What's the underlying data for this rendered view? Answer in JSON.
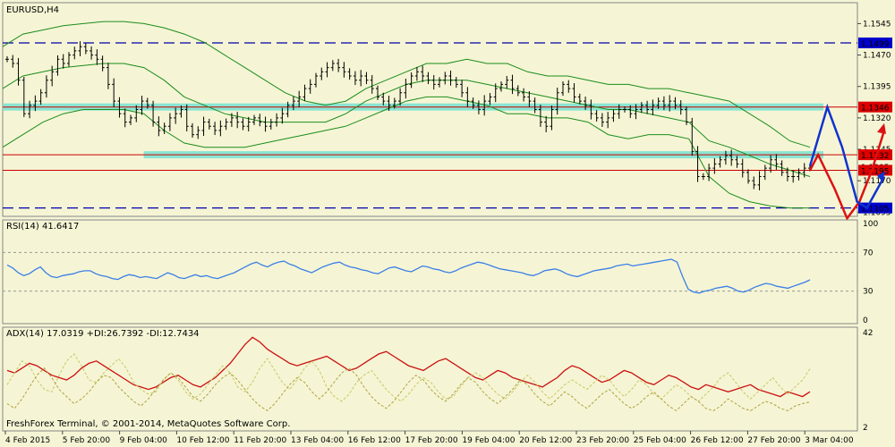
{
  "chart_data": [
    {
      "type": "ohlc",
      "title": "EURUSD,H4",
      "ylim": [
        1.1085,
        1.1595
      ],
      "y_ticks": [
        "1.1545",
        "1.1470",
        "1.1395",
        "1.1320",
        "1.1245",
        "1.1170",
        "1.1095"
      ],
      "levels": [
        {
          "value": 1.1499,
          "label": "1.1499",
          "style": "dashed",
          "color": "#0000aa"
        },
        {
          "value": 1.1346,
          "label": "1.1346",
          "style": "solid-band",
          "color": "#cc0000"
        },
        {
          "value": 1.1232,
          "label": "1.1232",
          "style": "solid",
          "color": "#cc0000"
        },
        {
          "value": 1.1205,
          "label": "1.1205",
          "style": "hidden",
          "color": "#333333"
        },
        {
          "value": 1.1195,
          "label": "1.1195",
          "style": "solid",
          "color": "#cc0000"
        },
        {
          "value": 1.1105,
          "label": "1.1105",
          "style": "dashed",
          "color": "#0000aa"
        }
      ],
      "close": [
        1.146,
        1.145,
        1.141,
        1.133,
        1.135,
        1.136,
        1.138,
        1.141,
        1.143,
        1.146,
        1.145,
        1.147,
        1.148,
        1.149,
        1.148,
        1.147,
        1.146,
        1.144,
        1.14,
        1.136,
        1.133,
        1.131,
        1.132,
        1.134,
        1.136,
        1.135,
        1.131,
        1.129,
        1.13,
        1.132,
        1.133,
        1.134,
        1.13,
        1.128,
        1.129,
        1.131,
        1.13,
        1.129,
        1.13,
        1.131,
        1.132,
        1.131,
        1.13,
        1.131,
        1.132,
        1.131,
        1.13,
        1.131,
        1.132,
        1.133,
        1.135,
        1.136,
        1.137,
        1.139,
        1.14,
        1.142,
        1.143,
        1.144,
        1.145,
        1.144,
        1.143,
        1.142,
        1.141,
        1.142,
        1.141,
        1.139,
        1.137,
        1.136,
        1.135,
        1.136,
        1.138,
        1.14,
        1.142,
        1.143,
        1.142,
        1.141,
        1.14,
        1.141,
        1.142,
        1.141,
        1.14,
        1.138,
        1.136,
        1.135,
        1.134,
        1.136,
        1.137,
        1.139,
        1.14,
        1.141,
        1.139,
        1.138,
        1.137,
        1.136,
        1.134,
        1.131,
        1.13,
        1.134,
        1.138,
        1.14,
        1.139,
        1.137,
        1.136,
        1.135,
        1.133,
        1.132,
        1.131,
        1.132,
        1.133,
        1.134,
        1.134,
        1.133,
        1.134,
        1.135,
        1.134,
        1.135,
        1.136,
        1.135,
        1.136,
        1.135,
        1.134,
        1.131,
        1.124,
        1.118,
        1.118,
        1.12,
        1.121,
        1.122,
        1.123,
        1.122,
        1.121,
        1.119,
        1.117,
        1.116,
        1.118,
        1.12,
        1.122,
        1.121,
        1.119,
        1.118,
        1.118,
        1.119,
        1.12,
        1.1205
      ],
      "bands": {
        "upper": [
          1.149,
          1.152,
          1.153,
          1.154,
          1.1545,
          1.155,
          1.155,
          1.1545,
          1.1535,
          1.152,
          1.15,
          1.147,
          1.144,
          1.141,
          1.138,
          1.136,
          1.135,
          1.136,
          1.139,
          1.141,
          1.143,
          1.145,
          1.145,
          1.146,
          1.145,
          1.145,
          1.143,
          1.142,
          1.142,
          1.141,
          1.14,
          1.14,
          1.139,
          1.139,
          1.138,
          1.137,
          1.136,
          1.133,
          1.13,
          1.1265,
          1.125
        ],
        "middle": [
          1.139,
          1.142,
          1.143,
          1.144,
          1.1445,
          1.145,
          1.145,
          1.144,
          1.141,
          1.137,
          1.135,
          1.133,
          1.132,
          1.131,
          1.131,
          1.131,
          1.131,
          1.133,
          1.136,
          1.138,
          1.14,
          1.141,
          1.141,
          1.141,
          1.14,
          1.139,
          1.138,
          1.137,
          1.136,
          1.135,
          1.134,
          1.134,
          1.133,
          1.132,
          1.131,
          1.1265,
          1.125,
          1.123,
          1.121,
          1.1195,
          1.118
        ],
        "lower": [
          1.125,
          1.128,
          1.131,
          1.133,
          1.134,
          1.134,
          1.134,
          1.133,
          1.129,
          1.126,
          1.125,
          1.125,
          1.125,
          1.126,
          1.127,
          1.128,
          1.129,
          1.13,
          1.132,
          1.134,
          1.136,
          1.137,
          1.137,
          1.136,
          1.135,
          1.133,
          1.133,
          1.132,
          1.132,
          1.131,
          1.128,
          1.127,
          1.128,
          1.128,
          1.127,
          1.118,
          1.114,
          1.112,
          1.111,
          1.1105,
          1.1105
        ]
      },
      "zones": [
        {
          "from": 0,
          "to": 1,
          "y": 1.1346
        },
        {
          "from": 0.165,
          "to": 1,
          "y": 1.1232
        }
      ],
      "projection": {
        "red": [
          [
            1.1195,
            0
          ],
          [
            1.1232,
            0.33
          ],
          [
            1.115,
            1
          ],
          [
            1.108,
            1.5
          ],
          [
            1.112,
            2
          ],
          [
            1.1195,
            2.5
          ],
          [
            1.129,
            3
          ]
        ],
        "blue": [
          [
            1.1205,
            0
          ],
          [
            1.1346,
            0.7
          ],
          [
            1.125,
            1.3
          ],
          [
            1.112,
            1.9
          ],
          [
            1.1105,
            2.3
          ],
          [
            1.118,
            3
          ]
        ]
      }
    },
    {
      "type": "line",
      "title": "RSI(14) 41.6417",
      "ylim": [
        0,
        100
      ],
      "y_ticks": [
        "100",
        "70",
        "30",
        "0"
      ],
      "levels": [
        70,
        30
      ],
      "values": [
        57,
        54,
        49,
        46,
        48,
        52,
        55,
        49,
        45,
        44,
        46,
        47,
        48,
        50,
        51,
        51,
        48,
        46,
        45,
        43,
        42,
        45,
        47,
        46,
        44,
        45,
        44,
        43,
        46,
        49,
        47,
        44,
        43,
        45,
        47,
        45,
        46,
        44,
        43,
        45,
        47,
        49,
        52,
        55,
        58,
        60,
        57,
        55,
        58,
        60,
        61,
        58,
        56,
        53,
        51,
        49,
        52,
        55,
        57,
        59,
        60,
        57,
        55,
        54,
        52,
        51,
        49,
        48,
        51,
        54,
        55,
        53,
        51,
        50,
        53,
        56,
        55,
        53,
        52,
        50,
        49,
        51,
        54,
        56,
        58,
        60,
        59,
        57,
        55,
        53,
        52,
        51,
        50,
        49,
        47,
        46,
        48,
        51,
        52,
        53,
        51,
        48,
        46,
        45,
        47,
        49,
        51,
        52,
        53,
        54,
        56,
        57,
        58,
        56,
        57,
        58,
        59,
        60,
        61,
        62,
        63,
        60,
        45,
        32,
        29,
        28,
        30,
        31,
        33,
        34,
        35,
        33,
        30,
        29,
        31,
        34,
        36,
        38,
        37,
        35,
        34,
        33,
        35,
        37,
        39,
        41.6417
      ],
      "x_labels": [
        "4 Feb 2015",
        "5 Feb 20:00",
        "9 Feb 04:00",
        "10 Feb 12:00",
        "11 Feb 20:00",
        "13 Feb 04:00",
        "16 Feb 12:00",
        "17 Feb 20:00",
        "19 Feb 04:00",
        "20 Feb 12:00",
        "23 Feb 20:00",
        "25 Feb 04:00",
        "26 Feb 12:00",
        "27 Feb 20:00",
        "3 Mar 04:00"
      ]
    },
    {
      "type": "line",
      "title": "ADX(14) 17.0319 +DI:26.7392 -DI:12.7434",
      "ylim": [
        2,
        42
      ],
      "y_ticks": [
        "42",
        "2"
      ],
      "series": [
        {
          "values": [
            26,
            25,
            27,
            29,
            28,
            26,
            24,
            23,
            22,
            24,
            27,
            29,
            30,
            28,
            26,
            24,
            22,
            20,
            19,
            18,
            19,
            21,
            23,
            24,
            22,
            20,
            19,
            21,
            23,
            26,
            29,
            33,
            37,
            40,
            38,
            35,
            33,
            31,
            29,
            28,
            29,
            30,
            31,
            32,
            30,
            28,
            26,
            27,
            29,
            31,
            33,
            34,
            32,
            30,
            28,
            27,
            26,
            28,
            30,
            31,
            29,
            27,
            25,
            23,
            22,
            24,
            26,
            25,
            23,
            22,
            21,
            20,
            19,
            21,
            23,
            26,
            28,
            27,
            25,
            23,
            21,
            22,
            24,
            26,
            25,
            23,
            21,
            20,
            22,
            24,
            23,
            21,
            19,
            18,
            20,
            19,
            18,
            17,
            18,
            19,
            20,
            18,
            17,
            16,
            15,
            17,
            16,
            15,
            17.0319
          ]
        },
        {
          "values": [
            20,
            25,
            30,
            28,
            22,
            18,
            17,
            24,
            30,
            33,
            28,
            22,
            21,
            25,
            28,
            31,
            27,
            21,
            18,
            16,
            17,
            22,
            25,
            22,
            17,
            14,
            16,
            20,
            24,
            28,
            25,
            19,
            17,
            21,
            27,
            31,
            26,
            21,
            18,
            22,
            27,
            30,
            26,
            19,
            15,
            13,
            16,
            21,
            24,
            26,
            22,
            18,
            15,
            13,
            16,
            20,
            23,
            21,
            17,
            14,
            15,
            19,
            23,
            25,
            23,
            19,
            16,
            14,
            17,
            21,
            24,
            21,
            17,
            14,
            17,
            20,
            22,
            20,
            18,
            21,
            24,
            22,
            18,
            15,
            18,
            22,
            20,
            16,
            14,
            17,
            20,
            18,
            15,
            13,
            16,
            19,
            23,
            25,
            21,
            17,
            14,
            17,
            20,
            23,
            19,
            16,
            19,
            22,
            26.7392
          ]
        },
        {
          "values": [
            12,
            10,
            14,
            19,
            24,
            27,
            23,
            18,
            15,
            12,
            14,
            17,
            21,
            24,
            23,
            19,
            16,
            13,
            11,
            14,
            18,
            22,
            25,
            23,
            19,
            15,
            13,
            16,
            20,
            23,
            25,
            22,
            18,
            14,
            11,
            9,
            12,
            16,
            20,
            23,
            21,
            17,
            14,
            17,
            21,
            25,
            27,
            24,
            19,
            15,
            12,
            10,
            13,
            17,
            21,
            24,
            22,
            18,
            15,
            13,
            16,
            20,
            23,
            21,
            17,
            14,
            12,
            15,
            18,
            22,
            20,
            16,
            13,
            11,
            14,
            17,
            15,
            12,
            10,
            13,
            16,
            18,
            15,
            12,
            10,
            12,
            15,
            17,
            14,
            11,
            9,
            12,
            15,
            13,
            10,
            9,
            11,
            14,
            12,
            10,
            9,
            11,
            13,
            12,
            10,
            9,
            11,
            12,
            12.7434
          ]
        }
      ]
    }
  ],
  "footer": "FreshForex Terminal, © 2001-2014, MetaQuotes Software Corp.",
  "colors": {
    "background": "#f5f5d5",
    "grid": "#c8c8b4",
    "candle": "#000000",
    "bands": "#1c8c1c",
    "zone": "#7fe3d2",
    "rsi": "#3c7fe6",
    "adx_main": "#cc1111",
    "adx_plus": "#c8c864",
    "adx_minus": "#b0a040",
    "proj_red": "#dd1111",
    "proj_blue": "#1133cc"
  }
}
